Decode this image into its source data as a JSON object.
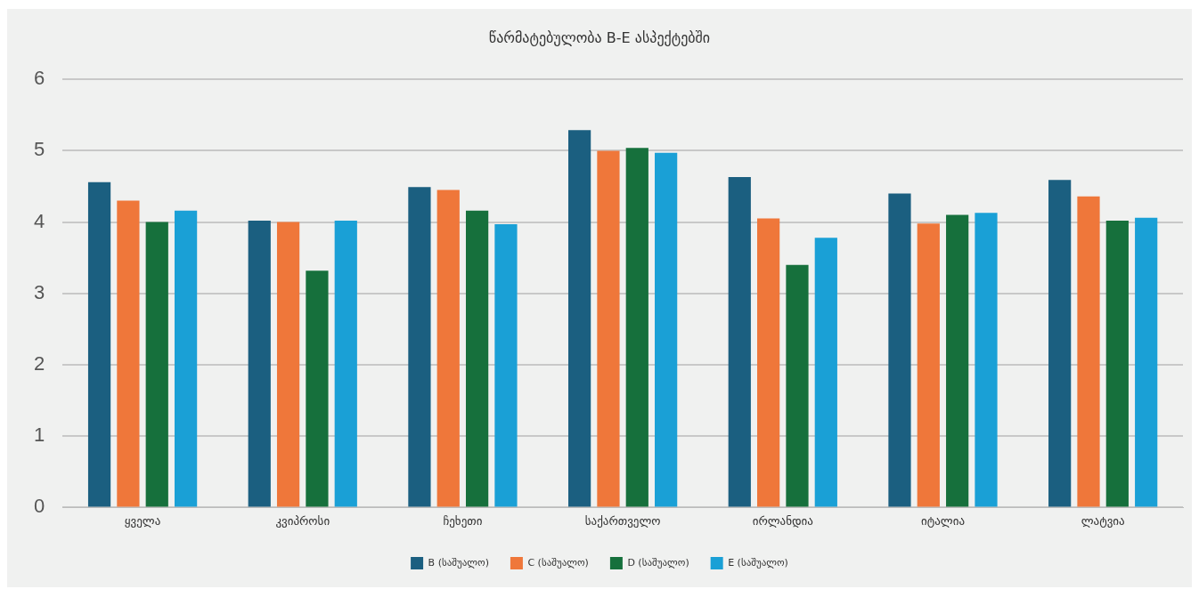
{
  "chart_data": {
    "type": "bar",
    "title": "წარმატებულობა B-E ასპექტებში",
    "categories": [
      "ყველა",
      "კვიპროსი",
      "ჩეხეთი",
      "საქართველო",
      "ირლანდია",
      "იტალია",
      "ლატვია"
    ],
    "series": [
      {
        "name": "B (საშუალო)",
        "color": "#1b5f80",
        "values": [
          4.56,
          4.02,
          4.49,
          5.29,
          4.63,
          4.4,
          4.59
        ]
      },
      {
        "name": "C (საშუალო)",
        "color": "#ef773a",
        "values": [
          4.3,
          4.0,
          4.45,
          5.0,
          4.05,
          3.98,
          4.36
        ]
      },
      {
        "name": "D (საშუალო)",
        "color": "#16703c",
        "values": [
          4.0,
          3.32,
          4.16,
          5.04,
          3.4,
          4.1,
          4.02
        ]
      },
      {
        "name": "E (საშუალო)",
        "color": "#1aa0d6",
        "values": [
          4.16,
          4.02,
          3.97,
          4.97,
          3.78,
          4.13,
          4.06
        ]
      }
    ],
    "ylim": [
      0,
      6
    ],
    "yticks": [
      0,
      1,
      2,
      3,
      4,
      5,
      6
    ],
    "grid": "y",
    "legend": "bottom"
  }
}
